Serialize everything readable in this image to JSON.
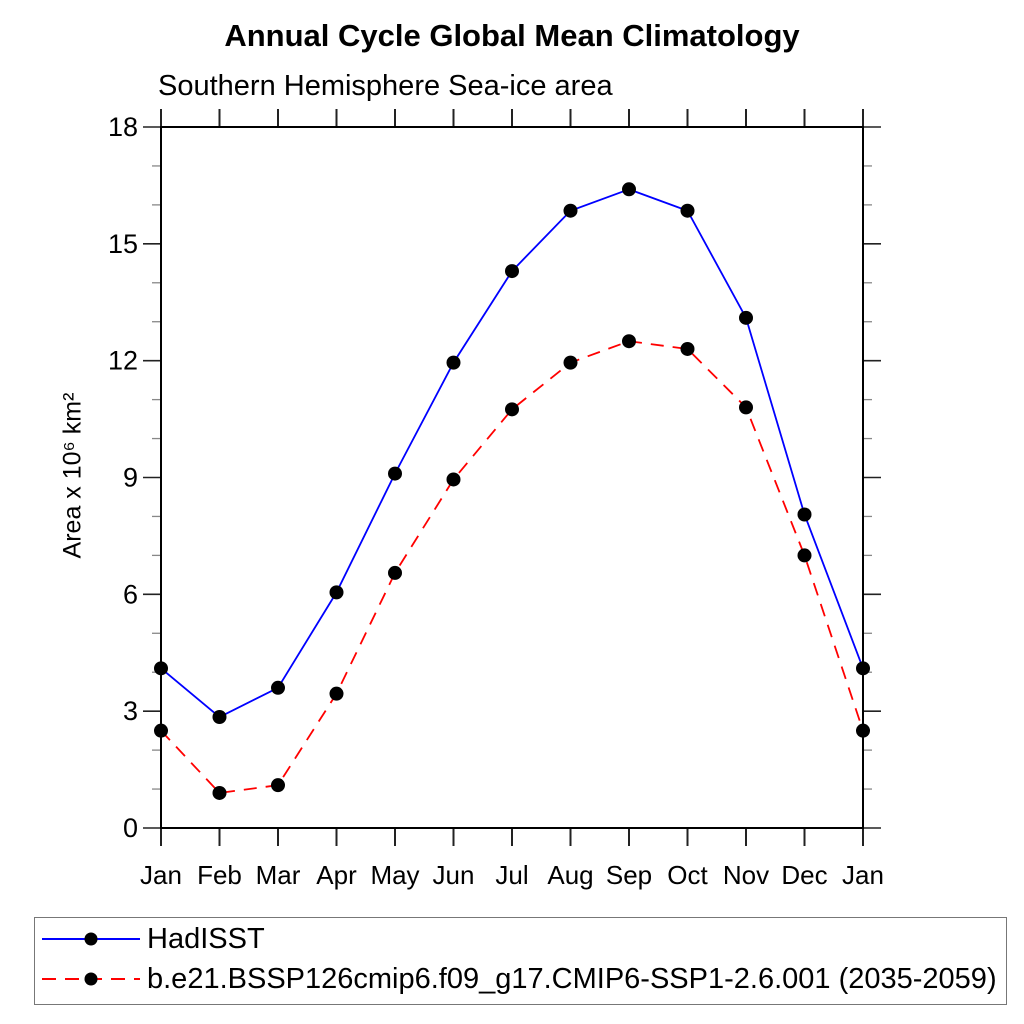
{
  "page": {
    "background": "#ffffff"
  },
  "chart_data": {
    "type": "line",
    "title": "Annual Cycle Global Mean Climatology",
    "subtitle": "Southern Hemisphere Sea-ice area",
    "xlabel": "",
    "ylabel": "Area x 10⁶ km²",
    "categories": [
      "Jan",
      "Feb",
      "Mar",
      "Apr",
      "May",
      "Jun",
      "Jul",
      "Aug",
      "Sep",
      "Oct",
      "Nov",
      "Dec",
      "Jan"
    ],
    "series": [
      {
        "name": "HadISST",
        "color": "#0000ff",
        "line_style": "solid",
        "marker": "circle",
        "marker_color": "#000000",
        "values": [
          4.1,
          2.85,
          3.6,
          6.05,
          9.1,
          11.95,
          14.3,
          15.85,
          16.4,
          15.85,
          13.1,
          8.05,
          4.1
        ]
      },
      {
        "name": "b.e21.BSSP126cmip6.f09_g17.CMIP6-SSP1-2.6.001 (2035-2059)",
        "color": "#ff0000",
        "line_style": "dashed",
        "marker": "circle",
        "marker_color": "#000000",
        "values": [
          2.5,
          0.9,
          1.1,
          3.45,
          6.55,
          8.95,
          10.75,
          11.95,
          12.5,
          12.3,
          10.8,
          7.0,
          2.5
        ]
      }
    ],
    "ylim": [
      0,
      18
    ],
    "yticks_major": [
      0,
      3,
      6,
      9,
      12,
      15,
      18
    ],
    "ytick_minor_step": 1,
    "grid": false,
    "legend_position": "bottom",
    "axis_color": "#000000"
  }
}
